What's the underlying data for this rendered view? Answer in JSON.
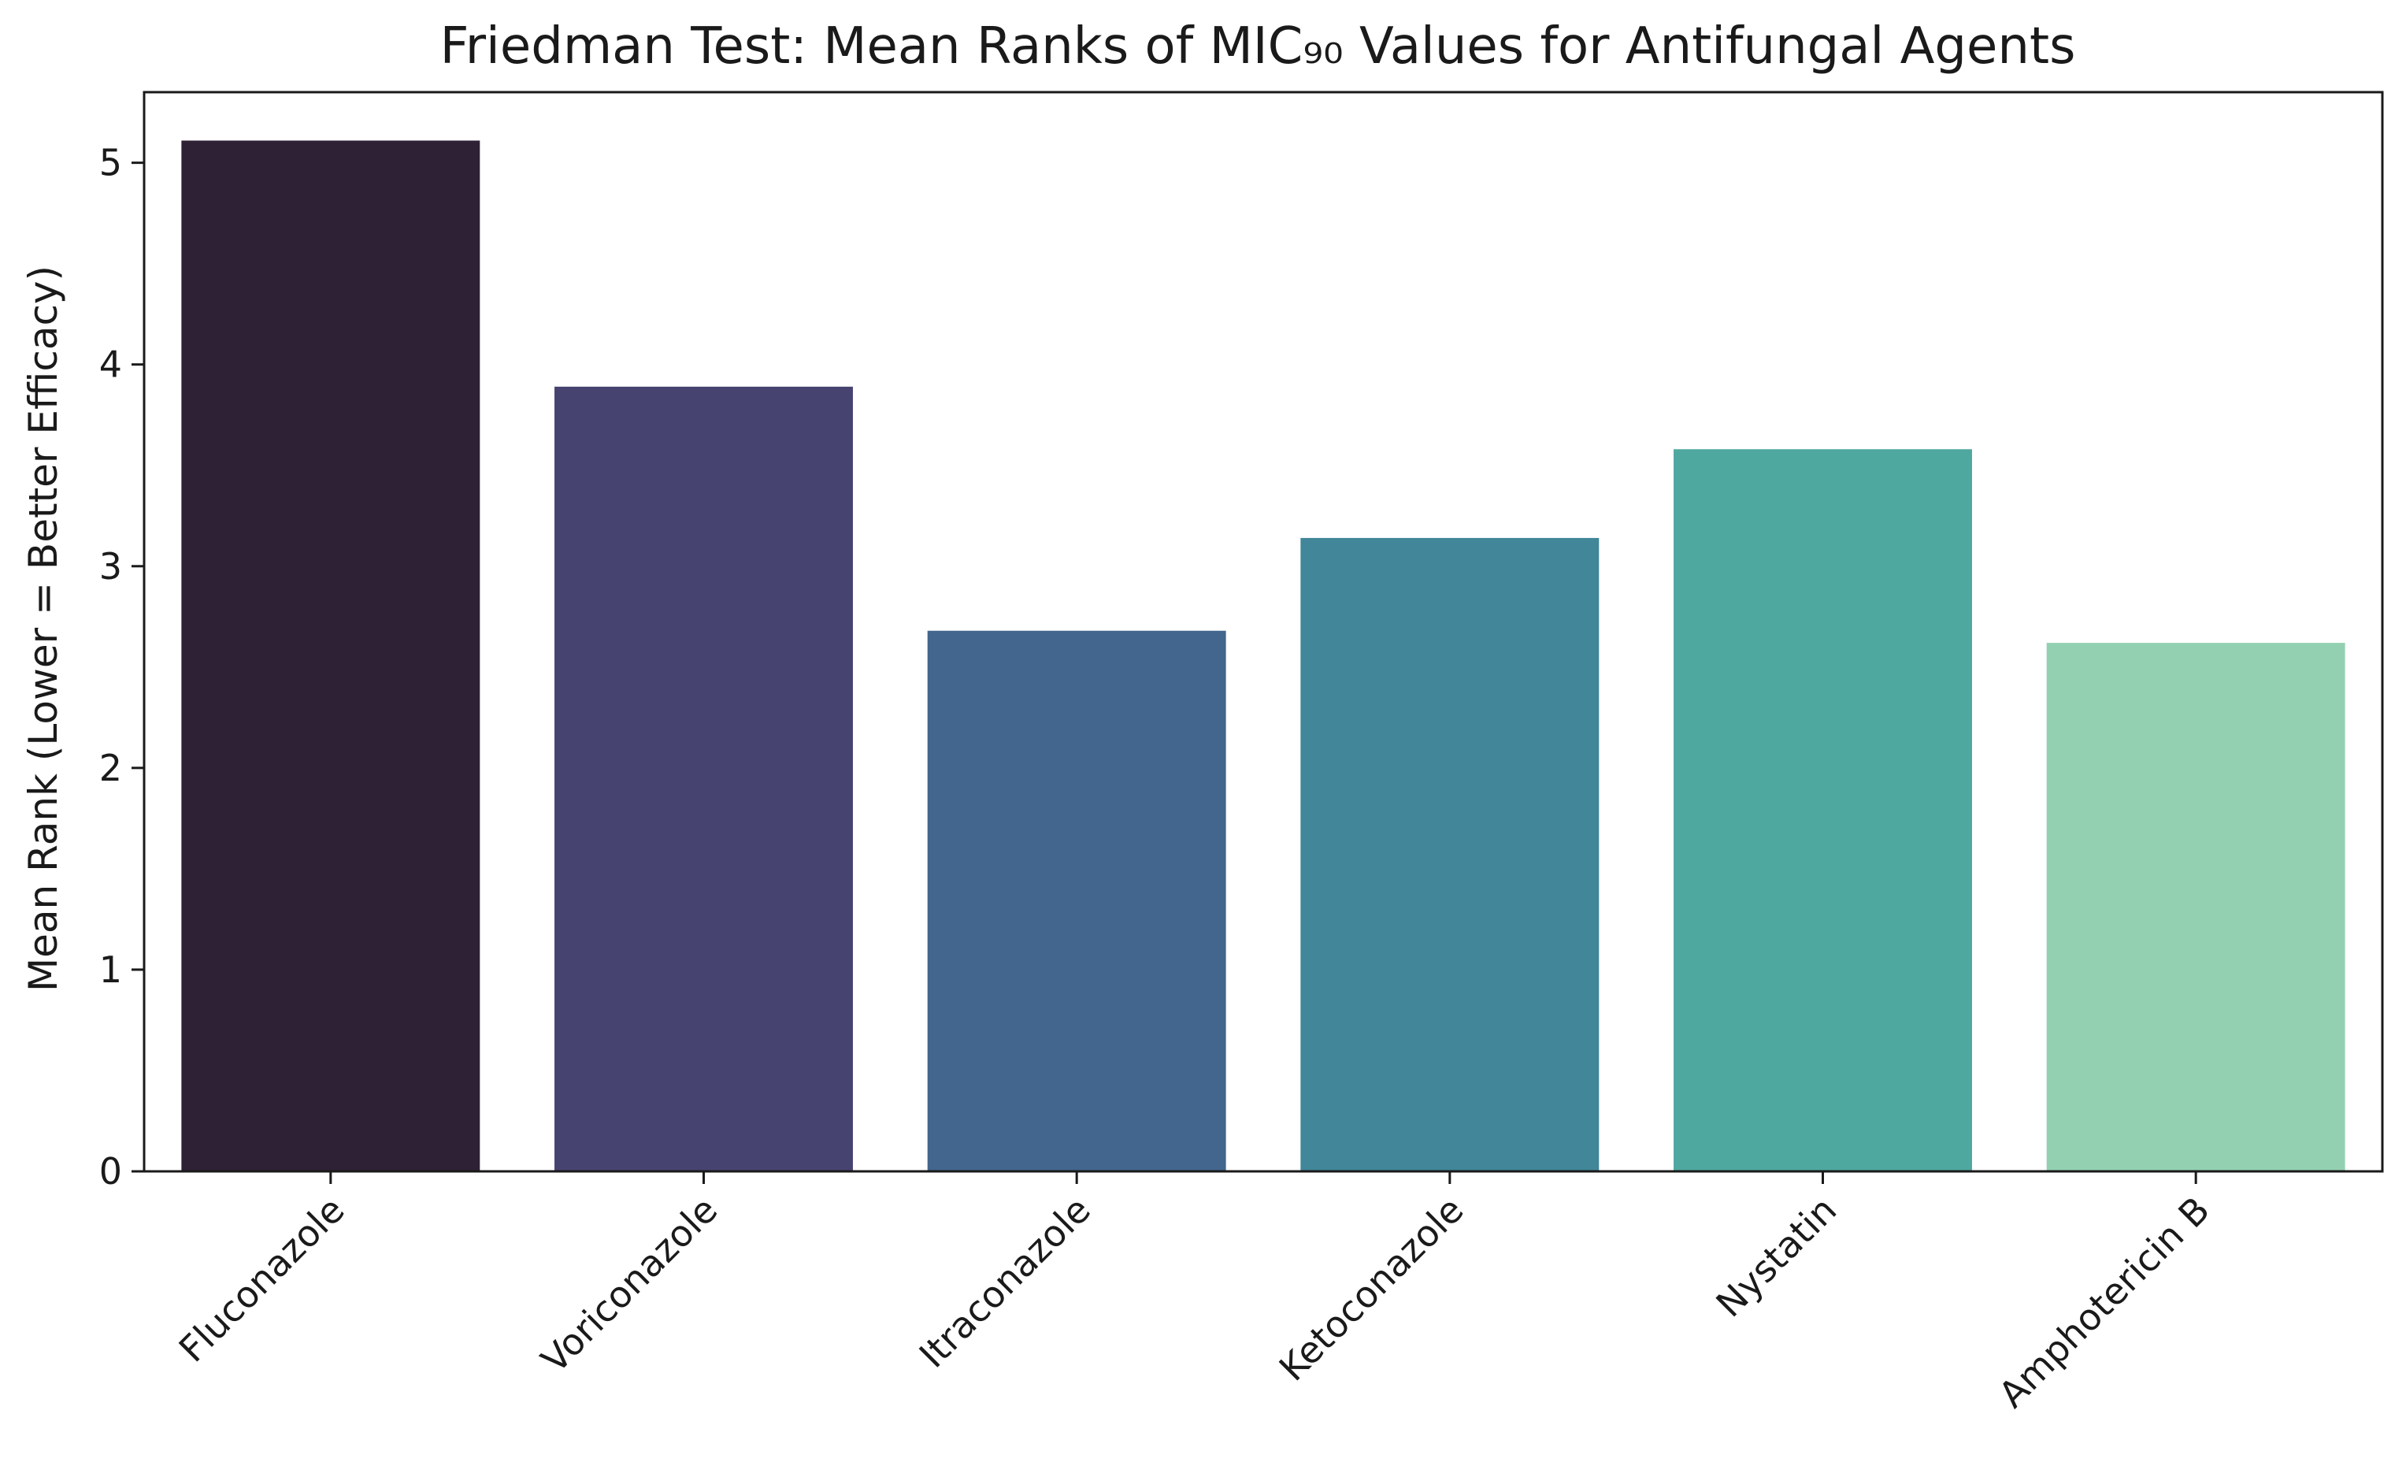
{
  "chart_data": {
    "type": "bar",
    "title": "Friedman Test: Mean Ranks of MIC₉₀ Values for Antifungal Agents",
    "xlabel": "",
    "ylabel": "Mean Rank (Lower = Better Efficacy)",
    "categories": [
      "Fluconazole",
      "Voriconazole",
      "Itraconazole",
      "Ketoconazole",
      "Nystatin",
      "Amphotericin B"
    ],
    "values": [
      5.11,
      3.89,
      2.68,
      3.14,
      3.58,
      2.62
    ],
    "colors": [
      "#2e2035",
      "#464370",
      "#42668d",
      "#418699",
      "#4fa8a0",
      "#93d0b2"
    ],
    "ylim": [
      0,
      5.35
    ],
    "yticks": [
      0,
      1,
      2,
      3,
      4,
      5
    ],
    "grid": false,
    "legend": "none"
  }
}
